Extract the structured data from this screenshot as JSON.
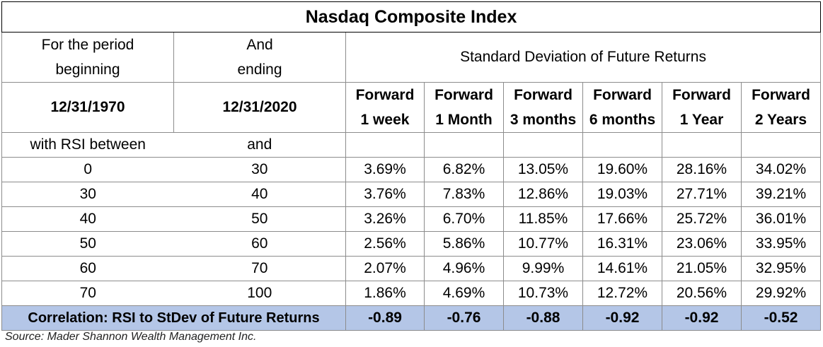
{
  "title": "Nasdaq Composite Index",
  "header": {
    "period_begin_label": [
      "For the period",
      "beginning"
    ],
    "period_end_label": [
      "And",
      "ending"
    ],
    "metric_label": "Standard Deviation of Future Returns",
    "begin_date": "12/31/1970",
    "end_date": "12/31/2020",
    "columns": [
      [
        "Forward",
        "1 week"
      ],
      [
        "Forward",
        "1 Month"
      ],
      [
        "Forward",
        "3 months"
      ],
      [
        "Forward",
        "6 months"
      ],
      [
        "Forward",
        "1 Year"
      ],
      [
        "Forward",
        "2 Years"
      ]
    ],
    "rsi_low_label": "with RSI between",
    "rsi_high_label": "and"
  },
  "rows": [
    {
      "low": "0",
      "high": "30",
      "values": [
        "3.69%",
        "6.82%",
        "13.05%",
        "19.60%",
        "28.16%",
        "34.02%"
      ]
    },
    {
      "low": "30",
      "high": "40",
      "values": [
        "3.76%",
        "7.83%",
        "12.86%",
        "19.03%",
        "27.71%",
        "39.21%"
      ]
    },
    {
      "low": "40",
      "high": "50",
      "values": [
        "3.26%",
        "6.70%",
        "11.85%",
        "17.66%",
        "25.72%",
        "36.01%"
      ]
    },
    {
      "low": "50",
      "high": "60",
      "values": [
        "2.56%",
        "5.86%",
        "10.77%",
        "16.31%",
        "23.06%",
        "33.95%"
      ]
    },
    {
      "low": "60",
      "high": "70",
      "values": [
        "2.07%",
        "4.96%",
        "9.99%",
        "14.61%",
        "21.05%",
        "32.95%"
      ]
    },
    {
      "low": "70",
      "high": "100",
      "values": [
        "1.86%",
        "4.69%",
        "10.73%",
        "12.72%",
        "20.56%",
        "29.92%"
      ]
    }
  ],
  "correlation": {
    "label": "Correlation: RSI to StDev of Future Returns",
    "values": [
      "-0.89",
      "-0.76",
      "-0.88",
      "-0.92",
      "-0.92",
      "-0.52"
    ]
  },
  "source": "Source: Mader Shannon Wealth Management Inc.",
  "colors": {
    "correlation_row_bg": "#b4c6e7",
    "border": "#8c8c8c"
  }
}
